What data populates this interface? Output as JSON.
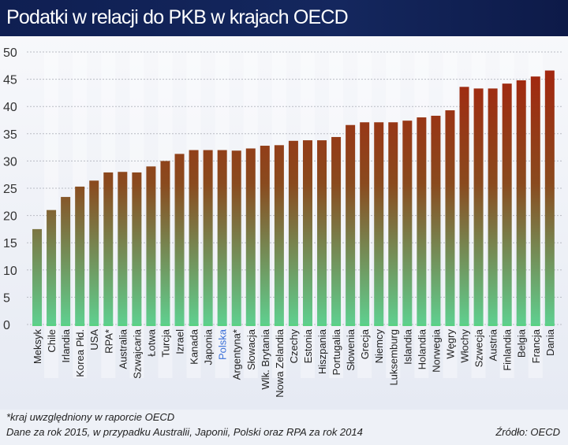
{
  "title": "Podatki w relacji do PKB w krajach OECD",
  "chart_data": {
    "type": "bar",
    "title": "Podatki w relacji do PKB w krajach OECD",
    "categories": [
      "Meksyk",
      "Chile",
      "Irlandia",
      "Korea Płd.",
      "USA",
      "RPA*",
      "Australia",
      "Szwajcaria",
      "Łotwa",
      "Turcja",
      "Izrael",
      "Kanada",
      "Japonia",
      "Polska",
      "Argentyna*",
      "Słowacja",
      "Wlk. Brytania",
      "Nowa Zelandia",
      "Czechy",
      "Estonia",
      "Hiszpania",
      "Portugalia",
      "Słowenia",
      "Grecja",
      "Niemcy",
      "Luksemburg",
      "Islandia",
      "Holandia",
      "Norwegia",
      "Węgry",
      "Włochy",
      "Szwecja",
      "Austria",
      "Finlandia",
      "Belgia",
      "Francja",
      "Dania"
    ],
    "values": [
      17.5,
      21.0,
      23.4,
      25.3,
      26.4,
      27.9,
      28.0,
      27.9,
      29.0,
      30.0,
      31.3,
      32.0,
      32.0,
      32.0,
      31.9,
      32.3,
      32.8,
      32.9,
      33.7,
      33.8,
      33.8,
      34.4,
      36.6,
      37.1,
      37.1,
      37.1,
      37.4,
      38.0,
      38.3,
      39.3,
      43.6,
      43.3,
      43.3,
      44.2,
      44.8,
      45.5,
      46.6
    ],
    "ylim": [
      0,
      50
    ],
    "yticks": [
      0,
      5,
      10,
      15,
      20,
      25,
      30,
      35,
      40,
      45,
      50
    ],
    "grid": true,
    "highlight_category": "Polska",
    "colors": {
      "bar_top": "#a3260f",
      "bar_bottom": "#5fcf8f",
      "highlight_label": "#3a6fd8",
      "grid": "#b9bcc4"
    }
  },
  "footnotes": {
    "note1": "*kraj uwzględniony w raporcie OECD",
    "note2": "Dane za rok 2015, w przypadku Australii, Japonii, Polski oraz RPA za rok 2014",
    "source": "Źródło: OECD"
  }
}
